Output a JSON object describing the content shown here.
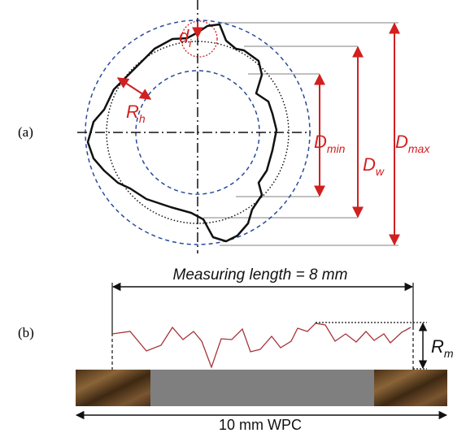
{
  "panel_a": {
    "label": "(a)",
    "d_i": {
      "main": "d",
      "sub": "i"
    },
    "r_h": {
      "main": "R",
      "sub": "h"
    },
    "d_min": {
      "main": "D",
      "sub": "min"
    },
    "d_w": {
      "main": "D",
      "sub": "w"
    },
    "d_max": {
      "main": "D",
      "sub": "max"
    }
  },
  "panel_b": {
    "label": "(b)",
    "measuring_length": "Measuring length = 8 mm",
    "r_m": {
      "main": "R",
      "sub": "m"
    },
    "specimen": "10 mm WPC"
  }
}
